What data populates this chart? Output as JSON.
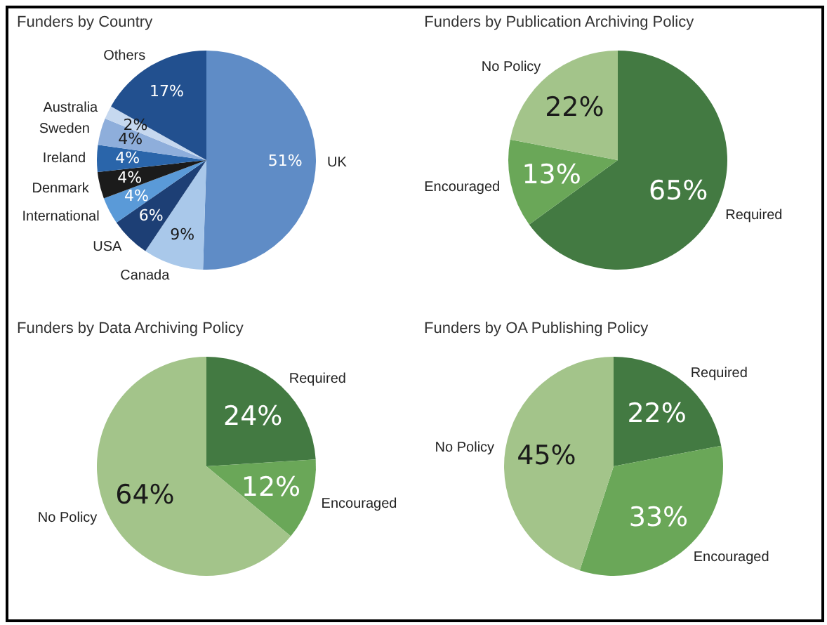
{
  "chart_data": [
    {
      "type": "pie",
      "title": "Funders by Country",
      "categories": [
        "UK",
        "Canada",
        "USA",
        "International",
        "Denmark",
        "Ireland",
        "Sweden",
        "Australia",
        "Others"
      ],
      "values": [
        51,
        9,
        6,
        4,
        4,
        4,
        4,
        2,
        17
      ],
      "value_labels": [
        "51%",
        "9%",
        "6%",
        "4%",
        "4%",
        "4%",
        "4%",
        "2%",
        "17%"
      ],
      "colors": [
        "#5f8cc6",
        "#a9c8ea",
        "#1d3f75",
        "#5a9ad8",
        "#1b1b1b",
        "#2a65aa",
        "#8eaedb",
        "#c6d8ef",
        "#22508f"
      ]
    },
    {
      "type": "pie",
      "title": "Funders by Publication Archiving Policy",
      "categories": [
        "Required",
        "Encouraged",
        "No Policy"
      ],
      "values": [
        65,
        13,
        22
      ],
      "value_labels": [
        "65%",
        "13%",
        "22%"
      ],
      "colors": [
        "#437a42",
        "#6aa758",
        "#a3c48a"
      ]
    },
    {
      "type": "pie",
      "title": "Funders by Data Archiving Policy",
      "categories": [
        "Required",
        "Encouraged",
        "No Policy"
      ],
      "values": [
        24,
        12,
        64
      ],
      "value_labels": [
        "24%",
        "12%",
        "64%"
      ],
      "colors": [
        "#437a42",
        "#6aa758",
        "#a3c48a"
      ]
    },
    {
      "type": "pie",
      "title": "Funders by OA Publishing Policy",
      "categories": [
        "Required",
        "Encouraged",
        "No Policy"
      ],
      "values": [
        22,
        33,
        45
      ],
      "value_labels": [
        "22%",
        "33%",
        "45%"
      ],
      "colors": [
        "#437a42",
        "#6aa758",
        "#a3c48a"
      ]
    }
  ]
}
